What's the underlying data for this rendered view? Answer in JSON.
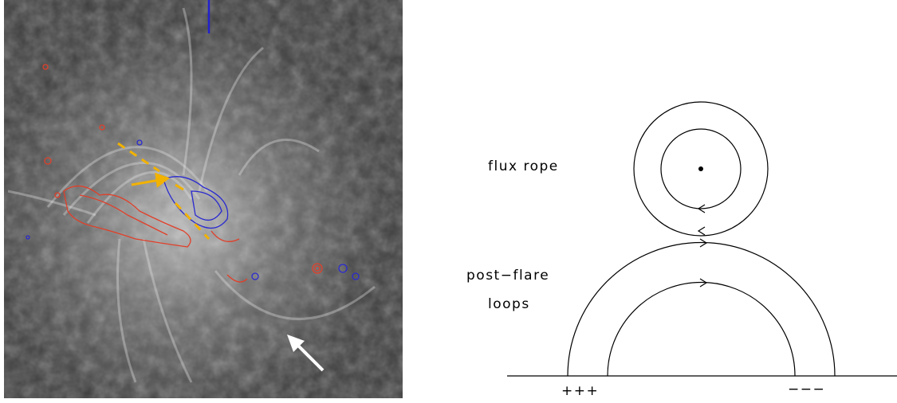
{
  "diagram": {
    "labels": {
      "flux_rope": "flux rope",
      "post_flare": "post−flare",
      "loops": "loops",
      "positive": "+++",
      "negative": "−−−"
    }
  }
}
